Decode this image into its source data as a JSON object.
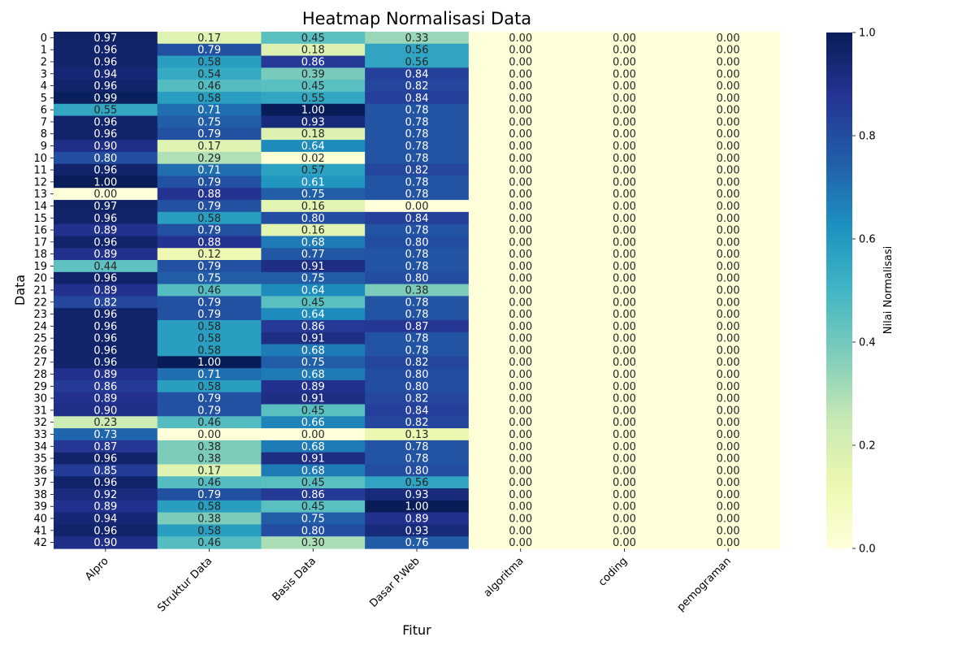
{
  "chart_data": {
    "type": "heatmap",
    "title": "Heatmap Normalisasi Data",
    "xlabel": "Fitur",
    "ylabel": "Data",
    "columns": [
      "Alpro",
      "Struktur Data",
      "Basis Data",
      "Dasar P.Web",
      "algoritma",
      "coding",
      "pemograman"
    ],
    "rows": [
      "0",
      "1",
      "2",
      "3",
      "4",
      "5",
      "6",
      "7",
      "8",
      "9",
      "10",
      "11",
      "12",
      "13",
      "14",
      "15",
      "16",
      "17",
      "18",
      "19",
      "20",
      "21",
      "22",
      "23",
      "24",
      "25",
      "26",
      "27",
      "28",
      "29",
      "30",
      "31",
      "32",
      "33",
      "34",
      "35",
      "36",
      "37",
      "38",
      "39",
      "40",
      "41",
      "42"
    ],
    "values": [
      [
        0.97,
        0.17,
        0.45,
        0.33,
        0,
        0,
        0
      ],
      [
        0.96,
        0.79,
        0.18,
        0.56,
        0,
        0,
        0
      ],
      [
        0.96,
        0.58,
        0.86,
        0.56,
        0,
        0,
        0
      ],
      [
        0.94,
        0.54,
        0.39,
        0.84,
        0,
        0,
        0
      ],
      [
        0.96,
        0.46,
        0.45,
        0.82,
        0,
        0,
        0
      ],
      [
        0.99,
        0.58,
        0.55,
        0.84,
        0,
        0,
        0
      ],
      [
        0.55,
        0.71,
        1.0,
        0.78,
        0,
        0,
        0
      ],
      [
        0.96,
        0.75,
        0.93,
        0.78,
        0,
        0,
        0
      ],
      [
        0.96,
        0.79,
        0.18,
        0.78,
        0,
        0,
        0
      ],
      [
        0.9,
        0.17,
        0.64,
        0.78,
        0,
        0,
        0
      ],
      [
        0.8,
        0.29,
        0.02,
        0.78,
        0,
        0,
        0
      ],
      [
        0.96,
        0.71,
        0.57,
        0.82,
        0,
        0,
        0
      ],
      [
        1.0,
        0.79,
        0.61,
        0.78,
        0,
        0,
        0
      ],
      [
        0.0,
        0.88,
        0.75,
        0.78,
        0,
        0,
        0
      ],
      [
        0.97,
        0.79,
        0.16,
        0.0,
        0,
        0,
        0
      ],
      [
        0.96,
        0.58,
        0.8,
        0.84,
        0,
        0,
        0
      ],
      [
        0.89,
        0.79,
        0.16,
        0.78,
        0,
        0,
        0
      ],
      [
        0.96,
        0.88,
        0.68,
        0.8,
        0,
        0,
        0
      ],
      [
        0.89,
        0.12,
        0.77,
        0.78,
        0,
        0,
        0
      ],
      [
        0.44,
        0.79,
        0.91,
        0.78,
        0,
        0,
        0
      ],
      [
        0.96,
        0.75,
        0.75,
        0.8,
        0,
        0,
        0
      ],
      [
        0.89,
        0.46,
        0.64,
        0.38,
        0,
        0,
        0
      ],
      [
        0.82,
        0.79,
        0.45,
        0.78,
        0,
        0,
        0
      ],
      [
        0.96,
        0.79,
        0.64,
        0.78,
        0,
        0,
        0
      ],
      [
        0.96,
        0.58,
        0.86,
        0.87,
        0,
        0,
        0
      ],
      [
        0.96,
        0.58,
        0.91,
        0.78,
        0,
        0,
        0
      ],
      [
        0.96,
        0.58,
        0.68,
        0.78,
        0,
        0,
        0
      ],
      [
        0.96,
        1.0,
        0.75,
        0.82,
        0,
        0,
        0
      ],
      [
        0.89,
        0.71,
        0.68,
        0.8,
        0,
        0,
        0
      ],
      [
        0.86,
        0.58,
        0.89,
        0.8,
        0,
        0,
        0
      ],
      [
        0.89,
        0.79,
        0.91,
        0.82,
        0,
        0,
        0
      ],
      [
        0.9,
        0.79,
        0.45,
        0.84,
        0,
        0,
        0
      ],
      [
        0.23,
        0.46,
        0.66,
        0.82,
        0,
        0,
        0
      ],
      [
        0.73,
        0.0,
        0.0,
        0.13,
        0,
        0,
        0
      ],
      [
        0.87,
        0.38,
        0.68,
        0.78,
        0,
        0,
        0
      ],
      [
        0.96,
        0.38,
        0.91,
        0.78,
        0,
        0,
        0
      ],
      [
        0.85,
        0.17,
        0.68,
        0.8,
        0,
        0,
        0
      ],
      [
        0.96,
        0.46,
        0.45,
        0.56,
        0,
        0,
        0
      ],
      [
        0.92,
        0.79,
        0.86,
        0.93,
        0,
        0,
        0
      ],
      [
        0.89,
        0.58,
        0.45,
        1.0,
        0,
        0,
        0
      ],
      [
        0.94,
        0.38,
        0.75,
        0.89,
        0,
        0,
        0
      ],
      [
        0.96,
        0.58,
        0.8,
        0.93,
        0,
        0,
        0
      ],
      [
        0.9,
        0.46,
        0.3,
        0.76,
        0,
        0,
        0
      ]
    ],
    "value_format": "0.00",
    "colormap": "YlGnBu",
    "vmin": 0,
    "vmax": 1,
    "colorbar": {
      "label": "Nilai Normalisasi",
      "ticks": [
        "0.0",
        "0.2",
        "0.4",
        "0.6",
        "0.8",
        "1.0"
      ]
    },
    "annotations": true
  }
}
